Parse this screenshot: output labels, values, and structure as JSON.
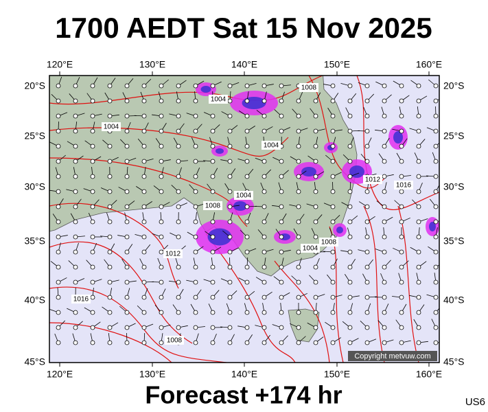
{
  "title": "1700 AEDT Sat 15 Nov 2025",
  "lon_labels": [
    "120°E",
    "130°E",
    "140°E",
    "150°E",
    "160°E"
  ],
  "lat_labels": [
    "20°S",
    "25°S",
    "30°S",
    "35°S",
    "40°S",
    "45°S"
  ],
  "isobar_labels": [
    "1004",
    "1004",
    "1008",
    "1004",
    "1004",
    "1008",
    "1012",
    "1016",
    "1012",
    "1016",
    "1008",
    "1008",
    "1004"
  ],
  "copyright": "Copyright metvuw.com",
  "footer": "Forecast +174 hr",
  "code": "US6"
}
